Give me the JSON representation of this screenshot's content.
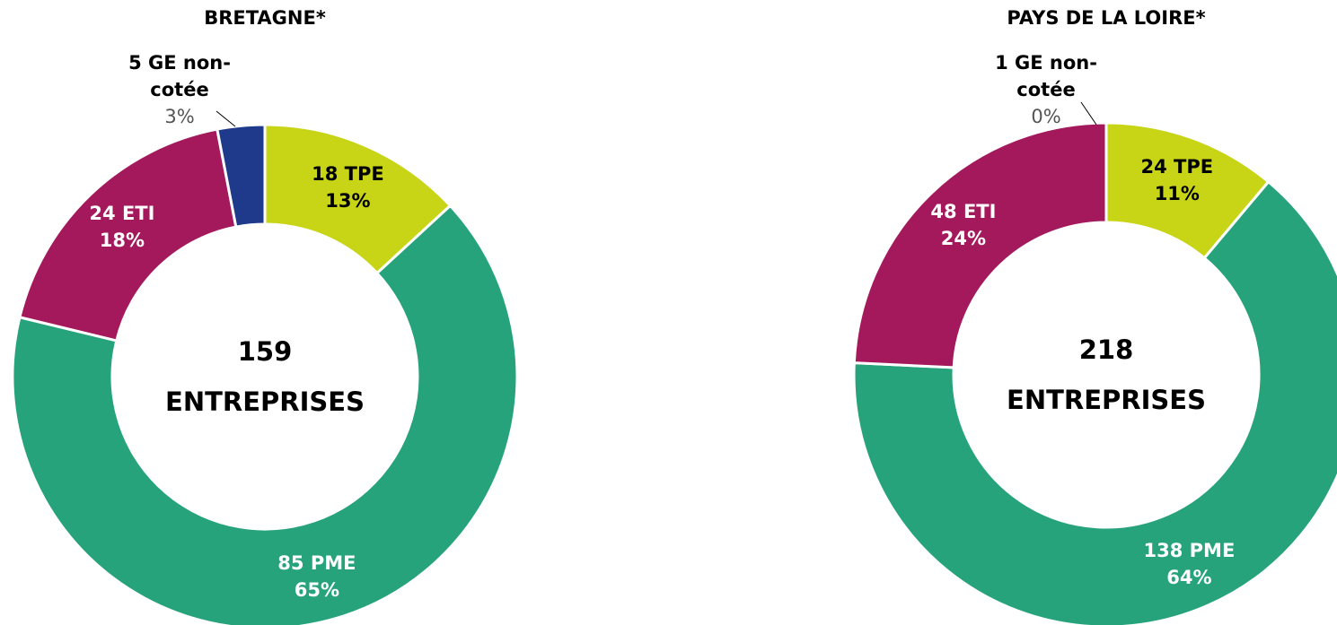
{
  "chart_data": [
    {
      "type": "donut",
      "title": "BRETAGNE*",
      "center_value": "159",
      "center_label": "ENTREPRISES",
      "categories": [
        "18 TPE",
        "85 PME",
        "24 ETI",
        "5 GE non-cotée"
      ],
      "values": [
        13,
        65,
        18,
        3
      ],
      "value_labels": [
        "13%",
        "65%",
        "18%",
        "3%"
      ],
      "colors": [
        "#c8d416",
        "#26a37a",
        "#a3195b",
        "#1f3a8a"
      ]
    },
    {
      "type": "donut",
      "title": "PAYS DE LA LOIRE*",
      "center_value": "218",
      "center_label": "ENTREPRISES",
      "categories": [
        "24 TPE",
        "138 PME",
        "48 ETI",
        "1 GE non-cotée"
      ],
      "values": [
        11,
        64,
        24,
        0
      ],
      "value_labels": [
        "11%",
        "64%",
        "24%",
        "0%"
      ],
      "colors": [
        "#c8d416",
        "#26a37a",
        "#a3195b",
        "#1f3a8a"
      ]
    }
  ]
}
